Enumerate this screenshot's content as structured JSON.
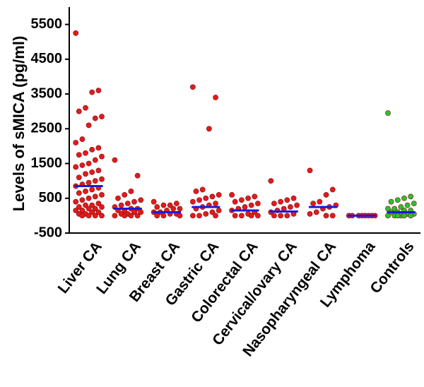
{
  "chart_data": {
    "type": "strip",
    "y_label": "Levels of sMICA (pg/ml)",
    "categories": [
      "Liver CA",
      "Lung CA",
      "Breast CA",
      "Gastric CA",
      "Colorectal CA",
      "Cervical/ovary CA",
      "Nasopharyngeal CA",
      "Lymphoma",
      "Controls"
    ],
    "values": [
      [
        5250,
        3600,
        3550,
        3100,
        3000,
        2850,
        2800,
        2600,
        2200,
        2100,
        1950,
        1900,
        1800,
        1750,
        1700,
        1600,
        1500,
        1450,
        1400,
        1300,
        1250,
        1200,
        1100,
        1050,
        1000,
        950,
        900,
        850,
        800,
        750,
        700,
        650,
        600,
        550,
        500,
        450,
        400,
        350,
        300,
        300,
        250,
        250,
        200,
        200,
        150,
        150,
        100,
        100,
        50,
        50,
        0,
        0,
        0,
        0
      ],
      [
        1600,
        1150,
        700,
        600,
        500,
        450,
        400,
        350,
        300,
        250,
        200,
        200,
        150,
        150,
        100,
        100,
        50,
        50,
        0,
        0,
        0,
        0
      ],
      [
        400,
        350,
        300,
        300,
        250,
        200,
        200,
        150,
        100,
        100,
        50,
        50,
        0,
        0,
        0
      ],
      [
        3700,
        3400,
        2500,
        750,
        700,
        600,
        550,
        500,
        450,
        400,
        350,
        300,
        250,
        200,
        150,
        100,
        50,
        0,
        0,
        0
      ],
      [
        600,
        550,
        500,
        450,
        400,
        350,
        300,
        250,
        200,
        150,
        100,
        50,
        0,
        0,
        0,
        0
      ],
      [
        1000,
        500,
        450,
        400,
        350,
        300,
        250,
        200,
        150,
        100,
        50,
        0,
        0,
        0
      ],
      [
        1300,
        750,
        600,
        400,
        350,
        300,
        250,
        200,
        100,
        50,
        0,
        0
      ],
      [
        0,
        0,
        0,
        0,
        0,
        0,
        0,
        0
      ],
      [
        2950,
        550,
        500,
        450,
        400,
        350,
        300,
        250,
        200,
        200,
        150,
        150,
        100,
        100,
        50,
        50,
        0,
        0,
        0,
        0,
        0,
        0
      ]
    ],
    "means": [
      850,
      200,
      100,
      250,
      150,
      120,
      250,
      0,
      100
    ],
    "point_colors": [
      "#e31a1c",
      "#e31a1c",
      "#e31a1c",
      "#e31a1c",
      "#e31a1c",
      "#e31a1c",
      "#e31a1c",
      "#e31a1c",
      "#2fbf2f"
    ],
    "mean_color": "#1a1adb",
    "ylim": [
      -500,
      6000
    ],
    "yticks": [
      -500,
      500,
      1500,
      2500,
      3500,
      4500,
      5500
    ]
  }
}
